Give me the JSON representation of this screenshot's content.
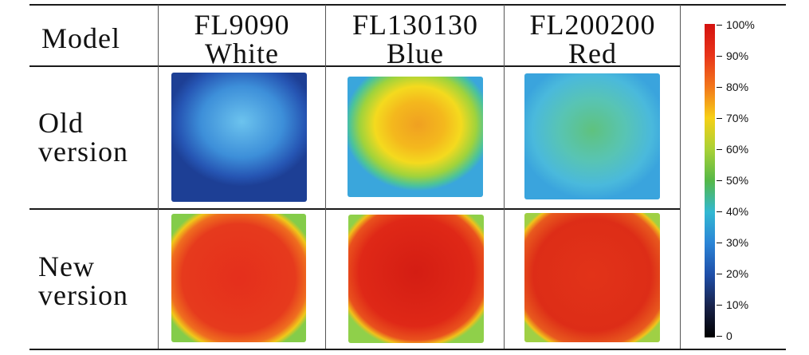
{
  "table": {
    "corner_label": "Model",
    "columns": [
      {
        "model": "FL9090",
        "color": "White"
      },
      {
        "model": "FL130130",
        "color": "Blue"
      },
      {
        "model": "FL200200",
        "color": "Red"
      }
    ],
    "rows": [
      {
        "line1": "Old",
        "line2": "version"
      },
      {
        "line1": "New",
        "line2": "version"
      }
    ]
  },
  "heatmaps": {
    "old_fl9090": {
      "center_level": "30%",
      "edge_level": "20%"
    },
    "old_fl130130": {
      "center_level": "75%",
      "edge_level": "40%"
    },
    "old_fl200200": {
      "center_level": "45%",
      "edge_level": "40%"
    },
    "new_fl9090": {
      "center_level": "90%",
      "edge_level": "60%"
    },
    "new_fl130130": {
      "center_level": "95%",
      "edge_level": "60%"
    },
    "new_fl200200": {
      "center_level": "95%",
      "edge_level": "80%"
    }
  },
  "colorbar": {
    "ticks": [
      "100%",
      "90%",
      "80%",
      "70%",
      "60%",
      "50%",
      "40%",
      "30%",
      "20%",
      "10%",
      "0"
    ],
    "colors": [
      "#d4120f",
      "#e8341a",
      "#f2761b",
      "#f6d016",
      "#a9d136",
      "#55b848",
      "#32b8d2",
      "#2b84d6",
      "#1e4ea8",
      "#18224a",
      "#000000"
    ]
  }
}
